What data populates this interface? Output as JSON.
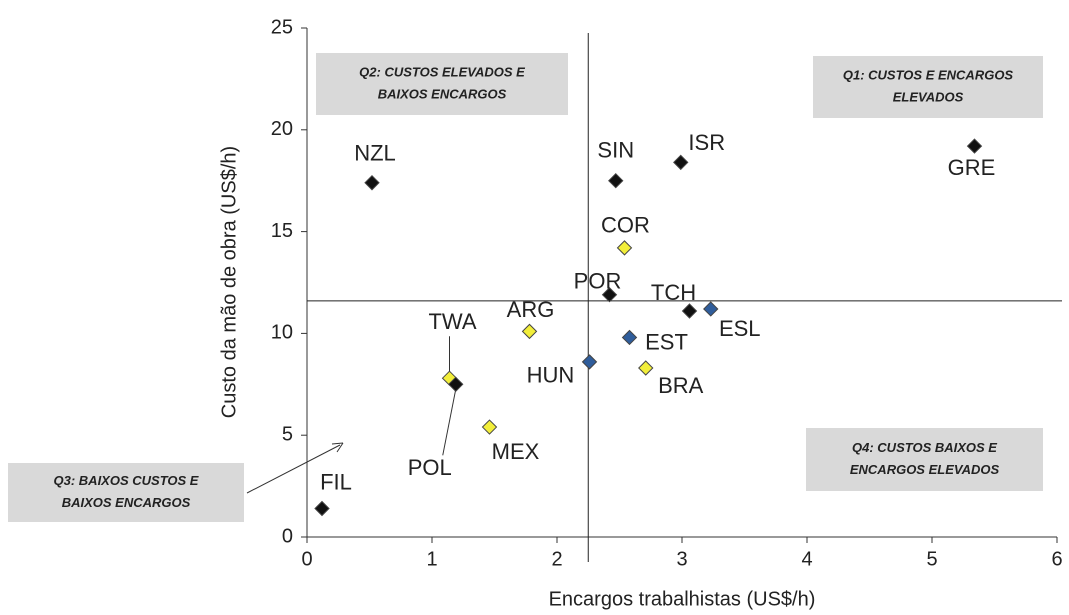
{
  "chart_data": {
    "type": "scatter",
    "xlabel": "Encargos trabalhistas (US$/h)",
    "ylabel": "Custo da mão de obra (US$/h)",
    "xlim": [
      0,
      6
    ],
    "xticks": [
      0,
      1,
      2,
      3,
      4,
      5,
      6
    ],
    "ylim": [
      0,
      25
    ],
    "yticks": [
      0,
      5,
      10,
      15,
      20,
      25
    ],
    "labels": [
      "NZL",
      "SIN",
      "ISR",
      "GRE",
      "COR",
      "POR",
      "TCH",
      "ESL",
      "ARG",
      "EST",
      "HUN",
      "BRA",
      "TWA",
      "POL",
      "MEX",
      "FIL"
    ],
    "x": [
      0.52,
      2.47,
      2.99,
      5.34,
      2.54,
      2.42,
      3.06,
      3.23,
      1.78,
      2.58,
      2.26,
      2.71,
      1.14,
      1.19,
      1.46,
      0.12
    ],
    "values": [
      17.4,
      17.5,
      18.4,
      19.2,
      14.2,
      11.9,
      11.1,
      11.2,
      10.1,
      9.8,
      8.6,
      8.3,
      7.8,
      7.5,
      5.4,
      1.4
    ],
    "colors": [
      "#111111",
      "#111111",
      "#111111",
      "#111111",
      "#f2ee3a",
      "#111111",
      "#111111",
      "#2f5d9b",
      "#f2ee3a",
      "#2f5d9b",
      "#2f5d9b",
      "#f2ee3a",
      "#f2ee3a",
      "#111111",
      "#f2ee3a",
      "#111111"
    ],
    "reference_lines": {
      "x": 2.25,
      "y": 11.6
    },
    "annotations": [
      [
        "Q2:  CUSTOS ELEVADOS E",
        "BAIXOS ENCARGOS"
      ],
      [
        "Q1:  CUSTOS E ENCARGOS",
        "ELEVADOS"
      ],
      [
        "Q4:  CUSTOS BAIXOS E",
        "ENCARGOS ELEVADOS"
      ],
      [
        "Q3:  BAIXOS CUSTOS E",
        "BAIXOS ENCARGOS"
      ]
    ]
  }
}
